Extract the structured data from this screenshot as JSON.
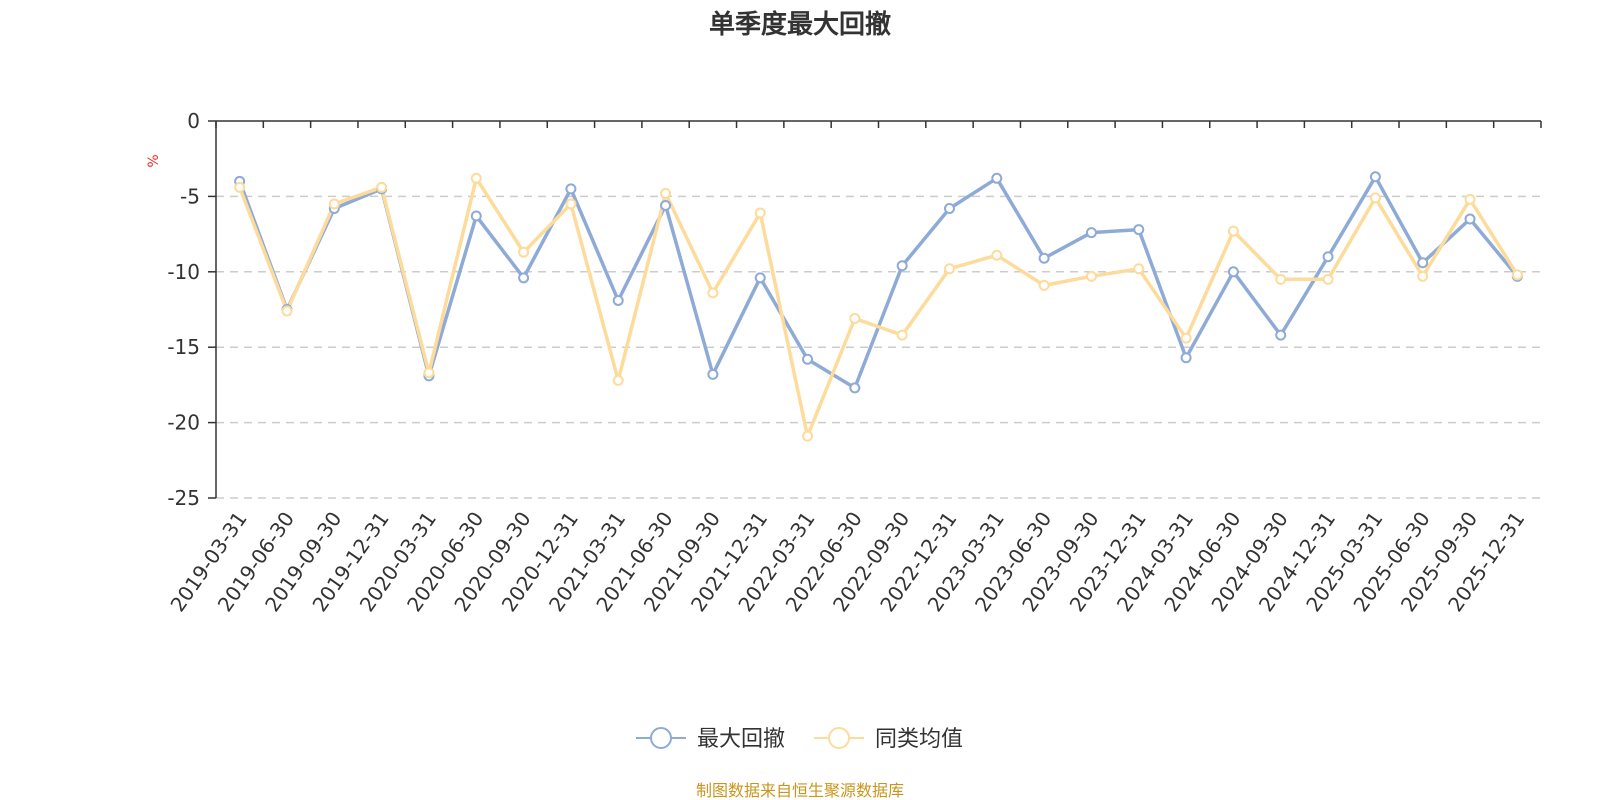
{
  "colors": {
    "series1": "#8eaad7",
    "series2": "#fddb9b",
    "unit": "#e8312a",
    "source": "#c8961e",
    "grid": "#cccccc",
    "axis": "#333333"
  },
  "footer": {
    "source": "制图数据来自恒生聚源数据库"
  },
  "chart_data": {
    "type": "line",
    "title": "单季度最大回撤",
    "ylabel": "%",
    "xlabel": "",
    "ylim": [
      -25,
      0
    ],
    "yticks": [
      0,
      -5,
      -10,
      -15,
      -20,
      -25
    ],
    "yticklabels": [
      "0",
      "-5",
      "-10",
      "-15",
      "-20",
      "-25"
    ],
    "grid": true,
    "legend_position": "bottom-center",
    "categories": [
      "2019-03-31",
      "2019-06-30",
      "2019-09-30",
      "2019-12-31",
      "2020-03-31",
      "2020-06-30",
      "2020-09-30",
      "2020-12-31",
      "2021-03-31",
      "2021-06-30",
      "2021-09-30",
      "2021-12-31",
      "2022-03-31",
      "2022-06-30",
      "2022-09-30",
      "2022-12-31",
      "2023-03-31",
      "2023-06-30",
      "2023-09-30",
      "2023-12-31",
      "2024-03-31",
      "2024-06-30",
      "2024-09-30",
      "2024-12-31",
      "2025-03-31",
      "2025-06-30",
      "2025-09-30",
      "2025-12-31"
    ],
    "series": [
      {
        "name": "最大回撤",
        "values": [
          -4.0,
          -12.5,
          -5.8,
          -4.5,
          -16.9,
          -6.3,
          -10.4,
          -4.5,
          -11.9,
          -5.6,
          -16.8,
          -10.4,
          -15.8,
          -17.7,
          -9.6,
          -5.8,
          -3.8,
          -9.1,
          -7.4,
          -7.2,
          -15.7,
          -10.0,
          -14.2,
          -9.0,
          -3.7,
          -9.4,
          -6.5,
          -10.3
        ]
      },
      {
        "name": "同类均值",
        "values": [
          -4.4,
          -12.6,
          -5.5,
          -4.4,
          -16.7,
          -3.8,
          -8.7,
          -5.5,
          -17.2,
          -4.8,
          -11.4,
          -6.1,
          -20.9,
          -13.1,
          -14.2,
          -9.8,
          -8.9,
          -10.9,
          -10.3,
          -9.8,
          -14.4,
          -7.3,
          -10.5,
          -10.5,
          -5.1,
          -10.3,
          -5.2,
          -10.2
        ]
      }
    ]
  }
}
